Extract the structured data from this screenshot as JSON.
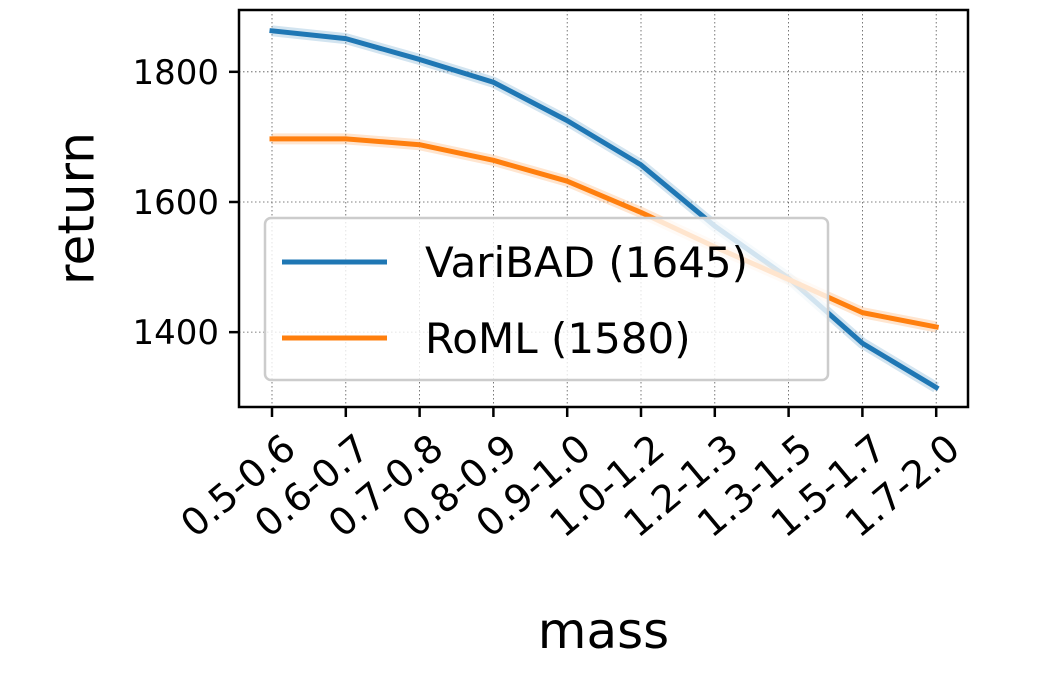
{
  "chart_data": {
    "type": "line",
    "xlabel": "mass",
    "ylabel": "return",
    "categories": [
      "0.5-0.6",
      "0.6-0.7",
      "0.7-0.8",
      "0.8-0.9",
      "0.9-1.0",
      "1.0-1.2",
      "1.2-1.3",
      "1.3-1.5",
      "1.5-1.7",
      "1.7-2.0"
    ],
    "ylim": [
      1285,
      1895
    ],
    "yticks": [
      1400,
      1600,
      1800
    ],
    "grid": true,
    "legend_position": "lower-left",
    "series": [
      {
        "name": "VariBAD (1645)",
        "color": "#1f77b4",
        "values": [
          1863,
          1851,
          1819,
          1784,
          1725,
          1657,
          1563,
          1483,
          1383,
          1315
        ]
      },
      {
        "name": "RoML (1580)",
        "color": "#ff7f0e",
        "values": [
          1697,
          1697,
          1688,
          1664,
          1632,
          1584,
          1531,
          1481,
          1430,
          1408
        ]
      }
    ]
  }
}
